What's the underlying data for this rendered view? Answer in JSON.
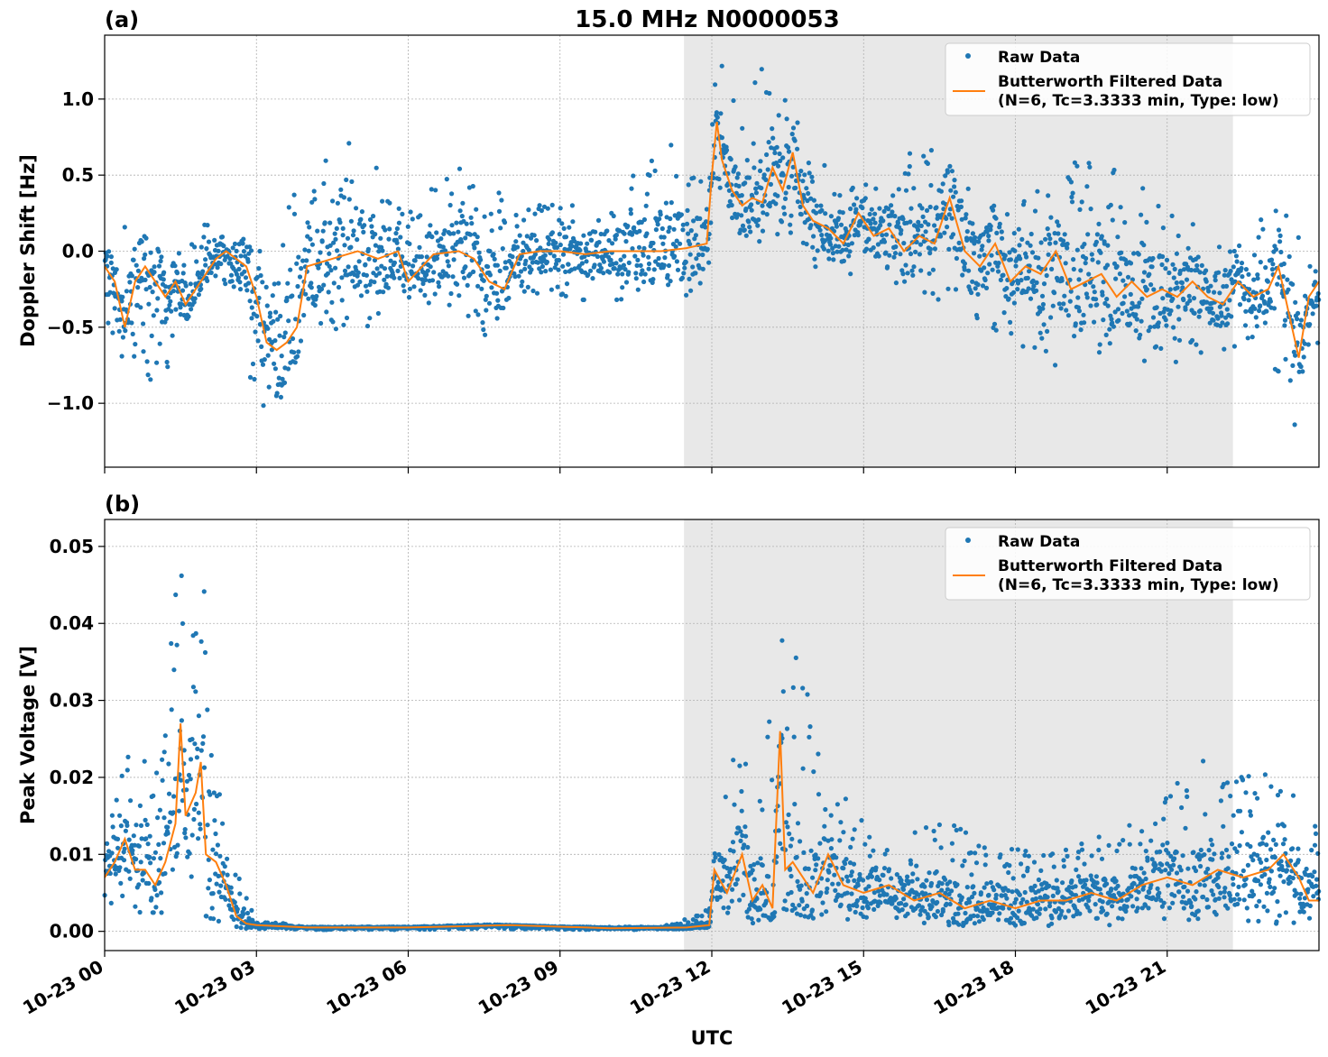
{
  "figure": {
    "title": "15.0 MHz N0000053",
    "xlabel": "UTC",
    "x_ticks": [
      "10-23 00",
      "10-23 03",
      "10-23 06",
      "10-23 09",
      "10-23 12",
      "10-23 15",
      "10-23 18",
      "10-23 21"
    ],
    "colors": {
      "raw": "#1f77b4",
      "filtered": "#ff7f0e",
      "shade": "#e8e8e8",
      "grid": "#b0b0b0"
    }
  },
  "legend": {
    "raw_label": "Raw Data",
    "filtered_line1": "Butterworth Filtered Data",
    "filtered_line2": "(N=6, Tc=3.3333 min, Type: low)"
  },
  "panels": {
    "a": {
      "tag": "(a)",
      "ylabel": "Doppler Shift [Hz]",
      "y_ticks": [
        "1.0",
        "0.5",
        "0.0",
        "−0.5",
        "−1.0"
      ]
    },
    "b": {
      "tag": "(b)",
      "ylabel": "Peak Voltage [V]",
      "y_ticks": [
        "0.05",
        "0.04",
        "0.03",
        "0.02",
        "0.01",
        "0.00"
      ]
    }
  },
  "chart_data": [
    {
      "type": "scatter",
      "panel": "(a)",
      "title": "15.0 MHz N0000053",
      "xlabel": "",
      "ylabel": "Doppler Shift [Hz]",
      "x_unit": "hours UTC on 10-23",
      "xlim": [
        0,
        24
      ],
      "ylim": [
        -1.42,
        1.42
      ],
      "shaded_region_x": [
        11.45,
        22.3
      ],
      "grid": true,
      "legend_position": "top-right",
      "series": [
        {
          "name": "Butterworth Filtered Data",
          "style": "line",
          "x": [
            0,
            0.2,
            0.4,
            0.6,
            0.8,
            1.0,
            1.2,
            1.4,
            1.6,
            1.8,
            2.0,
            2.2,
            2.4,
            2.6,
            2.8,
            3.0,
            3.2,
            3.4,
            3.6,
            3.8,
            4.0,
            4.5,
            5.0,
            5.4,
            5.8,
            6.0,
            6.5,
            7.0,
            7.3,
            7.6,
            7.9,
            8.2,
            8.6,
            9.0,
            9.5,
            10.0,
            10.5,
            11.0,
            11.5,
            11.9,
            12.0,
            12.1,
            12.2,
            12.4,
            12.6,
            12.8,
            13.0,
            13.2,
            13.4,
            13.6,
            13.8,
            14.0,
            14.3,
            14.6,
            14.9,
            15.2,
            15.5,
            15.8,
            16.1,
            16.4,
            16.7,
            17.0,
            17.3,
            17.6,
            17.9,
            18.2,
            18.5,
            18.8,
            19.1,
            19.4,
            19.7,
            20.0,
            20.3,
            20.6,
            20.9,
            21.2,
            21.5,
            21.8,
            22.1,
            22.4,
            22.7,
            23.0,
            23.2,
            23.4,
            23.6,
            23.8,
            24.0
          ],
          "y": [
            -0.1,
            -0.2,
            -0.5,
            -0.2,
            -0.1,
            -0.2,
            -0.3,
            -0.2,
            -0.35,
            -0.25,
            -0.15,
            -0.05,
            0.0,
            -0.05,
            -0.1,
            -0.3,
            -0.6,
            -0.65,
            -0.6,
            -0.5,
            -0.1,
            -0.05,
            0.0,
            -0.05,
            0.0,
            -0.2,
            -0.02,
            0.0,
            -0.05,
            -0.2,
            -0.25,
            -0.02,
            0.0,
            0.0,
            -0.02,
            0.0,
            0.0,
            0.0,
            0.02,
            0.05,
            0.5,
            0.85,
            0.6,
            0.4,
            0.3,
            0.35,
            0.32,
            0.55,
            0.4,
            0.65,
            0.3,
            0.2,
            0.15,
            0.05,
            0.25,
            0.1,
            0.15,
            0.0,
            0.1,
            0.05,
            0.35,
            0.0,
            -0.1,
            0.05,
            -0.2,
            -0.1,
            -0.15,
            0.0,
            -0.25,
            -0.2,
            -0.15,
            -0.3,
            -0.2,
            -0.3,
            -0.25,
            -0.3,
            -0.2,
            -0.3,
            -0.35,
            -0.2,
            -0.3,
            -0.25,
            -0.1,
            -0.4,
            -0.7,
            -0.3,
            -0.2
          ]
        },
        {
          "name": "Raw Data",
          "style": "points",
          "x": [
            0,
            0.5,
            1.0,
            1.5,
            2.0,
            2.5,
            3.0,
            3.5,
            4.0,
            5.0,
            6.0,
            7.0,
            7.5,
            8.0,
            9.0,
            10.0,
            11.0,
            11.9,
            12.05,
            12.2,
            12.5,
            13.0,
            13.5,
            14.0,
            15.0,
            16.0,
            17.0,
            18.0,
            19.0,
            20.0,
            21.0,
            22.0,
            22.5,
            23.0,
            23.4,
            24.0
          ],
          "y_low": [
            -0.5,
            -0.9,
            -1.1,
            -0.5,
            -0.3,
            -0.2,
            -1.2,
            -1.0,
            -0.5,
            -0.6,
            -0.3,
            -0.45,
            -0.6,
            -0.3,
            -0.3,
            -0.35,
            -0.4,
            -0.3,
            0.3,
            0.4,
            0.1,
            0.05,
            0.05,
            -0.1,
            -0.2,
            -0.3,
            -0.4,
            -0.6,
            -0.8,
            -0.7,
            -0.8,
            -0.7,
            -0.6,
            -0.6,
            -1.3,
            -0.7
          ],
          "y_high": [
            0.2,
            0.15,
            0.1,
            0.0,
            0.2,
            0.1,
            0.1,
            0.4,
            0.55,
            0.75,
            0.3,
            0.55,
            0.45,
            0.35,
            0.3,
            0.3,
            0.8,
            0.5,
            1.2,
            1.25,
            1.0,
            1.3,
            1.0,
            0.6,
            0.45,
            0.7,
            0.7,
            0.3,
            0.6,
            0.6,
            0.25,
            0.15,
            0.1,
            0.3,
            0.25,
            -0.1
          ]
        }
      ]
    },
    {
      "type": "scatter",
      "panel": "(b)",
      "title": "",
      "xlabel": "UTC",
      "ylabel": "Peak Voltage [V]",
      "x_unit": "hours UTC on 10-23",
      "xlim": [
        0,
        24
      ],
      "ylim": [
        -0.0025,
        0.0535
      ],
      "shaded_region_x": [
        11.45,
        22.3
      ],
      "grid": true,
      "legend_position": "top-right",
      "series": [
        {
          "name": "Butterworth Filtered Data",
          "style": "line",
          "x": [
            0,
            0.2,
            0.4,
            0.6,
            0.8,
            1.0,
            1.2,
            1.4,
            1.5,
            1.6,
            1.8,
            1.9,
            2.0,
            2.2,
            2.4,
            2.6,
            2.8,
            3.0,
            4.0,
            6.0,
            8.0,
            10.0,
            11.5,
            11.95,
            12.05,
            12.3,
            12.6,
            12.8,
            13.0,
            13.2,
            13.35,
            13.45,
            13.6,
            13.8,
            14.0,
            14.3,
            14.6,
            15.0,
            15.5,
            16.0,
            16.5,
            17.0,
            17.5,
            18.0,
            18.5,
            19.0,
            19.5,
            20.0,
            20.5,
            21.0,
            21.5,
            22.0,
            22.5,
            23.0,
            23.3,
            23.6,
            23.8,
            24.0
          ],
          "y": [
            0.007,
            0.009,
            0.012,
            0.008,
            0.008,
            0.006,
            0.009,
            0.014,
            0.027,
            0.015,
            0.018,
            0.022,
            0.01,
            0.009,
            0.006,
            0.002,
            0.001,
            0.0008,
            0.0005,
            0.0005,
            0.0008,
            0.0004,
            0.0005,
            0.0008,
            0.008,
            0.005,
            0.01,
            0.004,
            0.006,
            0.003,
            0.026,
            0.008,
            0.009,
            0.007,
            0.005,
            0.01,
            0.006,
            0.005,
            0.006,
            0.004,
            0.005,
            0.003,
            0.004,
            0.003,
            0.004,
            0.004,
            0.005,
            0.004,
            0.006,
            0.007,
            0.006,
            0.008,
            0.007,
            0.008,
            0.01,
            0.007,
            0.004,
            0.004
          ]
        },
        {
          "name": "Raw Data",
          "style": "points",
          "x": [
            0,
            0.5,
            1.0,
            1.5,
            1.65,
            2.0,
            2.3,
            2.6,
            3.0,
            4.0,
            6.0,
            7.5,
            9.0,
            11.0,
            11.95,
            12.1,
            12.6,
            13.0,
            13.4,
            13.8,
            14.5,
            15.5,
            16.5,
            17.5,
            18.5,
            19.5,
            20.5,
            21.0,
            21.5,
            22.0,
            22.5,
            23.0,
            23.5,
            24.0
          ],
          "y_low": [
            0.003,
            0.002,
            0.001,
            0.004,
            0.006,
            0.002,
            0.001,
            0.0005,
            0.0002,
            0.0002,
            0.0002,
            0.0003,
            0.0002,
            0.0002,
            0.0005,
            0.002,
            0.001,
            0.0005,
            0.003,
            0.002,
            0.001,
            0.001,
            0.0005,
            0.001,
            0.0005,
            0.001,
            0.0005,
            0.001,
            0.001,
            0.001,
            0.001,
            0.0005,
            0.0005,
            0.001
          ],
          "y_high": [
            0.015,
            0.025,
            0.02,
            0.05,
            0.035,
            0.05,
            0.015,
            0.008,
            0.0015,
            0.0006,
            0.0006,
            0.0009,
            0.0006,
            0.0006,
            0.003,
            0.016,
            0.028,
            0.018,
            0.051,
            0.035,
            0.018,
            0.013,
            0.015,
            0.012,
            0.011,
            0.012,
            0.015,
            0.019,
            0.021,
            0.024,
            0.02,
            0.023,
            0.018,
            0.015
          ]
        }
      ]
    }
  ]
}
